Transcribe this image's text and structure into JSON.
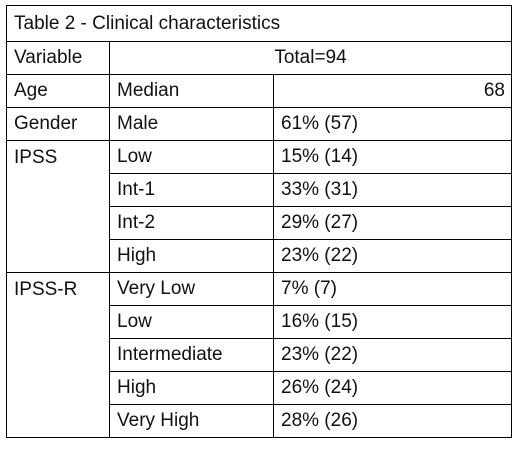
{
  "table": {
    "title": "Table 2 - Clinical characteristics",
    "header": {
      "variable": "Variable",
      "total": "Total=94"
    },
    "rows": [
      {
        "variable": "Age",
        "category": "Median",
        "value": "68"
      },
      {
        "variable": "Gender",
        "category": "Male",
        "value": "61% (57)"
      },
      {
        "variable": "IPSS",
        "category": "Low",
        "value": "15% (14)"
      },
      {
        "variable": "",
        "category": "Int-1",
        "value": "33% (31)"
      },
      {
        "variable": "",
        "category": "Int-2",
        "value": "29% (27)"
      },
      {
        "variable": "",
        "category": "High",
        "value": "23% (22)"
      },
      {
        "variable": "IPSS-R",
        "category": "Very Low",
        "value": "7% (7)"
      },
      {
        "variable": "",
        "category": "Low",
        "value": "16% (15)"
      },
      {
        "variable": "",
        "category": "Intermediate",
        "value": "23% (22)"
      },
      {
        "variable": "",
        "category": "High",
        "value": "26% (24)"
      },
      {
        "variable": "",
        "category": "Very High",
        "value": "28% (26)"
      }
    ]
  }
}
